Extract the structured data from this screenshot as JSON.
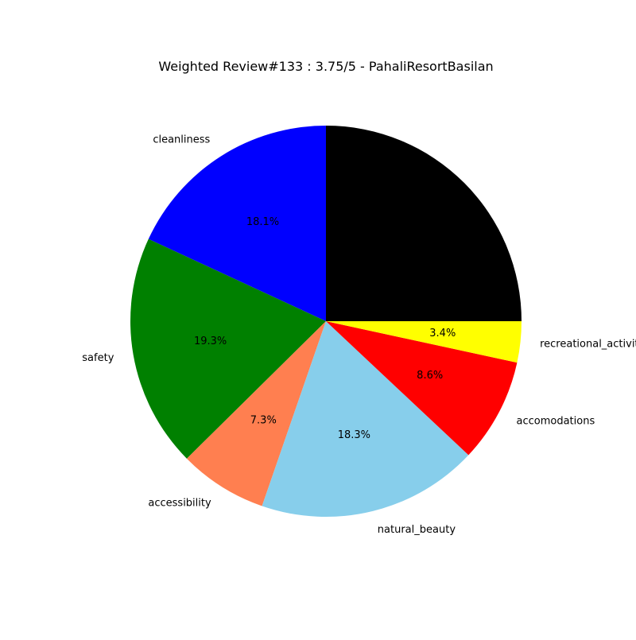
{
  "chart_data": {
    "type": "pie",
    "title": "Weighted Review#133 : 3.75/5 - PahaliResortBasilan",
    "start_angle_deg": 0,
    "direction": "counterclockwise",
    "slices": [
      {
        "label": "",
        "value": 25.0,
        "pct_label": "",
        "color": "#000000"
      },
      {
        "label": "cleanliness",
        "value": 18.1,
        "pct_label": "18.1%",
        "color": "#0000ff"
      },
      {
        "label": "safety",
        "value": 19.3,
        "pct_label": "19.3%",
        "color": "#008000"
      },
      {
        "label": "accessibility",
        "value": 7.3,
        "pct_label": "7.3%",
        "color": "#ff7f50"
      },
      {
        "label": "natural_beauty",
        "value": 18.3,
        "pct_label": "18.3%",
        "color": "#87ceeb"
      },
      {
        "label": "accomodations",
        "value": 8.6,
        "pct_label": "8.6%",
        "color": "#ff0000"
      },
      {
        "label": "recreational_activities",
        "value": 3.4,
        "pct_label": "3.4%",
        "color": "#ffff00"
      }
    ]
  }
}
